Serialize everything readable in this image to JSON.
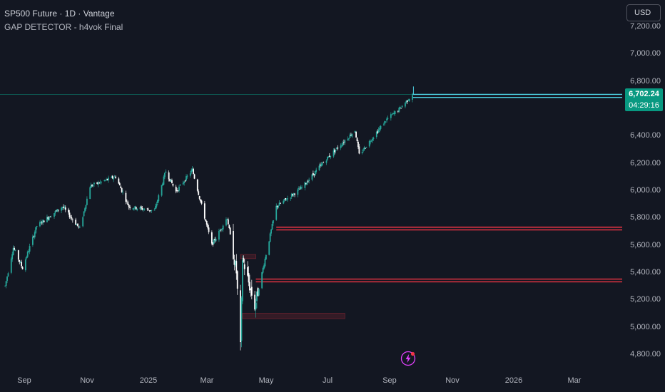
{
  "legend": {
    "symbol_line": "SP500 Future · 1D · Vantage",
    "indicator_line": "GAP DETECTOR - h4vok Final"
  },
  "toolbar": {
    "currency": "USD"
  },
  "price_axis": {
    "labels": [
      "7,200.00",
      "7,000.00",
      "6,800.00",
      "6,400.00",
      "6,200.00",
      "6,000.00",
      "5,800.00",
      "5,600.00",
      "5,400.00",
      "5,200.00",
      "5,000.00",
      "4,800.00"
    ],
    "current_price": "6,702.24",
    "countdown": "04:29:16"
  },
  "time_axis": {
    "labels": [
      "Sep",
      "Nov",
      "2025",
      "Mar",
      "May",
      "Jul",
      "Sep",
      "Nov",
      "2026",
      "Mar"
    ]
  },
  "colors": {
    "background": "#131722",
    "up": "#26a69a",
    "down": "#ffffff",
    "gap_line": "#f23645",
    "open_gap_line": "#4dd0e1",
    "price_tag": "#089981",
    "accent_bolt": "#e040fb"
  },
  "icons": {
    "bolt": "lightning-bolt-icon"
  },
  "chart_data": {
    "type": "candlestick",
    "series_trend": [
      {
        "x": "2024-08-20",
        "y": 5300
      },
      {
        "x": "2024-08-28",
        "y": 5580
      },
      {
        "x": "2024-09-06",
        "y": 5430
      },
      {
        "x": "2024-09-20",
        "y": 5740
      },
      {
        "x": "2024-10-15",
        "y": 5880
      },
      {
        "x": "2024-11-01",
        "y": 5720
      },
      {
        "x": "2024-11-11",
        "y": 6030
      },
      {
        "x": "2024-12-06",
        "y": 6100
      },
      {
        "x": "2024-12-19",
        "y": 5880
      },
      {
        "x": "2025-01-13",
        "y": 5850
      },
      {
        "x": "2025-01-24",
        "y": 6140
      },
      {
        "x": "2025-02-03",
        "y": 5990
      },
      {
        "x": "2025-02-19",
        "y": 6150
      },
      {
        "x": "2025-03-10",
        "y": 5600
      },
      {
        "x": "2025-03-25",
        "y": 5800
      },
      {
        "x": "2025-04-03",
        "y": 5400
      },
      {
        "x": "2025-04-07",
        "y": 4850
      },
      {
        "x": "2025-04-09",
        "y": 5500
      },
      {
        "x": "2025-04-21",
        "y": 5150
      },
      {
        "x": "2025-05-12",
        "y": 5880
      },
      {
        "x": "2025-06-06",
        "y": 6020
      },
      {
        "x": "2025-06-30",
        "y": 6230
      },
      {
        "x": "2025-07-28",
        "y": 6440
      },
      {
        "x": "2025-08-01",
        "y": 6260
      },
      {
        "x": "2025-08-28",
        "y": 6520
      },
      {
        "x": "2025-09-10",
        "y": 6600
      },
      {
        "x": "2025-09-22",
        "y": 6702
      }
    ],
    "gap_levels": [
      {
        "price": 6702,
        "status": "open"
      },
      {
        "price": 6680,
        "status": "open"
      },
      {
        "price": 5730,
        "status": "filled"
      },
      {
        "price": 5710,
        "status": "filled"
      },
      {
        "price": 5350,
        "status": "filled"
      },
      {
        "price": 5330,
        "status": "filled"
      }
    ],
    "gap_zones": [
      {
        "from": "2025-04-09",
        "to": "2025-07-18",
        "low": 5060,
        "high": 5100
      },
      {
        "from": "2025-04-07",
        "to": "2025-04-22",
        "low": 5500,
        "high": 5530
      }
    ],
    "current_price": 6702.24,
    "y_range": [
      4720,
      7260
    ],
    "x_range": [
      "2024-08-15",
      "2026-04-15"
    ]
  }
}
